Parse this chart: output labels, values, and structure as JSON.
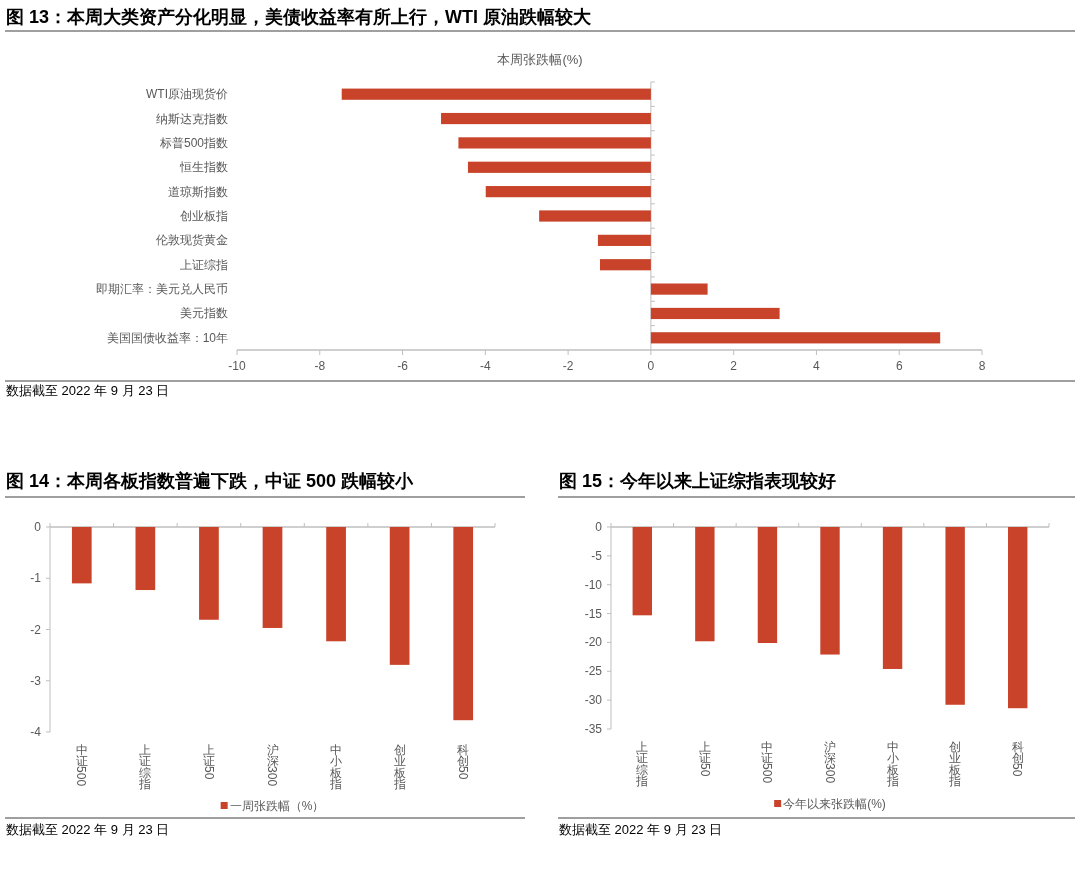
{
  "chart_data": [
    {
      "type": "bar",
      "orientation": "horizontal",
      "title": "图 13：本周大类资产分化明显，美债收益率有所上行，WTI 原油跌幅较大",
      "subtitle": "本周张跌幅(%)",
      "categories": [
        "WTI原油现货价",
        "纳斯达克指数",
        "标普500指数",
        "恒生指数",
        "道琼斯指数",
        "创业板指",
        "伦敦现货黄金",
        "上证综指",
        "即期汇率：美元兑人民币",
        "美元指数",
        "美国国债收益率：10年"
      ],
      "values": [
        -7.47,
        -5.07,
        -4.65,
        -4.42,
        -3.99,
        -2.7,
        -1.28,
        -1.23,
        1.37,
        3.11,
        6.99
      ],
      "color": "#c8432a",
      "xlim": [
        -10,
        8
      ],
      "xticks": [
        -10,
        -8,
        -6,
        -4,
        -2,
        0,
        2,
        4,
        6,
        8
      ],
      "annotations": [
        "数据截至 2022 年 9 月 23 日"
      ]
    },
    {
      "type": "bar",
      "title": "图 14：本周各板指数普遍下跌，中证 500 跌幅较小",
      "categories": [
        "中证500",
        "上证综指",
        "上证50",
        "沪深300",
        "中小板指",
        "创业板指",
        "科创50"
      ],
      "series": [
        {
          "name": "一周张跌幅（%）",
          "color": "#c8432a",
          "values": [
            -1.1,
            -1.23,
            -1.81,
            -1.97,
            -2.23,
            -2.69,
            -3.77
          ]
        }
      ],
      "ylim": [
        -4,
        0
      ],
      "yticks": [
        0,
        -1,
        -2,
        -3,
        -4
      ],
      "legend": "bottom",
      "annotations": [
        "数据截至 2022 年 9 月 23 日"
      ]
    },
    {
      "type": "bar",
      "title": "图 15：今年以来上证综指表现较好",
      "categories": [
        "上证综指",
        "上证50",
        "中证500",
        "沪深300",
        "中小板指",
        "创业板指",
        "科创50"
      ],
      "series": [
        {
          "name": "今年以来张跌幅(%)",
          "color": "#c8432a",
          "values": [
            -15.3,
            -19.8,
            -20.1,
            -22.1,
            -24.6,
            -30.8,
            -31.4
          ]
        }
      ],
      "ylim": [
        -35,
        0
      ],
      "yticks": [
        0,
        -5,
        -10,
        -15,
        -20,
        -25,
        -30,
        -35
      ],
      "legend": "bottom",
      "annotations": [
        "数据截至 2022 年 9 月 23 日"
      ]
    }
  ]
}
